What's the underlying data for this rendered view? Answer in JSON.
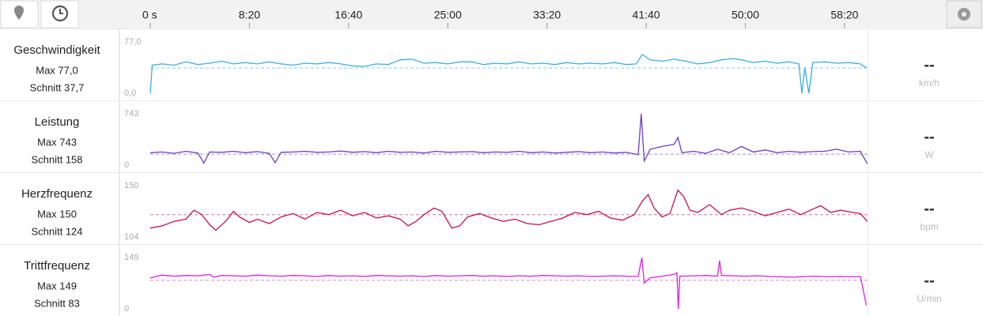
{
  "timeline": {
    "xlim": [
      0,
      3620
    ],
    "xticks": [
      {
        "value": 0,
        "label": "0 s"
      },
      {
        "value": 500,
        "label": "8:20"
      },
      {
        "value": 1000,
        "label": "16:40"
      },
      {
        "value": 1500,
        "label": "25:00"
      },
      {
        "value": 2000,
        "label": "33:20"
      },
      {
        "value": 2500,
        "label": "41:40"
      },
      {
        "value": 3000,
        "label": "50:00"
      },
      {
        "value": 3500,
        "label": "58:20"
      }
    ]
  },
  "chart_data": [
    {
      "type": "line",
      "title": "Geschwindigkeit",
      "max_label": "Max 77,0",
      "average": {
        "value": 37.7,
        "label": "Schnitt 37,7"
      },
      "current": "--",
      "unit": "km/h",
      "color": "#3aaee0",
      "ylim": [
        0,
        77
      ],
      "yticks": [
        {
          "value": 0,
          "label": "0,0"
        },
        {
          "value": 77,
          "label": "77,0"
        }
      ],
      "x": [
        0,
        10,
        60,
        120,
        180,
        240,
        300,
        360,
        420,
        480,
        540,
        600,
        660,
        720,
        780,
        840,
        900,
        960,
        1020,
        1080,
        1140,
        1200,
        1260,
        1320,
        1380,
        1440,
        1500,
        1560,
        1620,
        1680,
        1740,
        1800,
        1860,
        1920,
        1980,
        2040,
        2100,
        2160,
        2220,
        2280,
        2340,
        2400,
        2450,
        2480,
        2520,
        2580,
        2640,
        2700,
        2760,
        2820,
        2880,
        2940,
        2980,
        3040,
        3100,
        3160,
        3220,
        3270,
        3285,
        3300,
        3320,
        3340,
        3400,
        3460,
        3520,
        3580,
        3610
      ],
      "values": [
        0,
        42,
        44,
        42,
        47,
        43,
        45,
        48,
        44,
        46,
        44,
        47,
        44,
        42,
        45,
        44,
        46,
        44,
        41,
        40,
        44,
        43,
        50,
        51,
        45,
        46,
        44,
        47,
        47,
        43,
        45,
        44,
        47,
        44,
        45,
        43,
        46,
        44,
        45,
        44,
        46,
        43,
        44,
        58,
        50,
        48,
        51,
        48,
        44,
        46,
        50,
        52,
        50,
        46,
        48,
        45,
        47,
        44,
        0,
        38,
        0,
        46,
        47,
        45,
        46,
        44,
        38
      ]
    },
    {
      "type": "line",
      "title": "Leistung",
      "max_label": "Max 743",
      "average": {
        "value": 158,
        "label": "Schnitt 158"
      },
      "current": "--",
      "unit": "W",
      "color": "#6a3ec7",
      "ylim": [
        0,
        743
      ],
      "yticks": [
        0,
        743
      ],
      "x": [
        0,
        60,
        120,
        180,
        240,
        270,
        300,
        360,
        420,
        480,
        540,
        600,
        630,
        660,
        720,
        780,
        840,
        900,
        960,
        1020,
        1080,
        1140,
        1200,
        1260,
        1320,
        1380,
        1440,
        1500,
        1560,
        1620,
        1680,
        1740,
        1800,
        1860,
        1920,
        1980,
        2040,
        2100,
        2160,
        2220,
        2280,
        2340,
        2400,
        2460,
        2475,
        2490,
        2520,
        2580,
        2640,
        2660,
        2680,
        2740,
        2800,
        2860,
        2920,
        2980,
        3040,
        3100,
        3160,
        3220,
        3280,
        3340,
        3400,
        3460,
        3520,
        3580,
        3615
      ],
      "values": [
        180,
        190,
        170,
        200,
        175,
        30,
        190,
        185,
        200,
        180,
        195,
        170,
        35,
        185,
        190,
        200,
        185,
        190,
        205,
        185,
        195,
        180,
        200,
        185,
        190,
        175,
        200,
        185,
        190,
        195,
        180,
        190,
        185,
        200,
        180,
        190,
        175,
        185,
        195,
        180,
        190,
        175,
        185,
        150,
        743,
        60,
        230,
        270,
        300,
        400,
        180,
        200,
        170,
        230,
        180,
        270,
        190,
        220,
        180,
        200,
        185,
        195,
        200,
        230,
        190,
        200,
        20
      ]
    },
    {
      "type": "line",
      "title": "Herzfrequenz",
      "max_label": "Max 150",
      "average": {
        "value": 124,
        "label": "Schnitt 124"
      },
      "current": "--",
      "unit": "bpm",
      "color": "#c8104e",
      "ylim": [
        104,
        150
      ],
      "yticks": [
        104,
        150
      ],
      "x": [
        0,
        60,
        120,
        180,
        220,
        260,
        300,
        330,
        380,
        420,
        450,
        500,
        540,
        600,
        660,
        720,
        780,
        840,
        900,
        960,
        1020,
        1080,
        1140,
        1200,
        1260,
        1300,
        1340,
        1380,
        1430,
        1470,
        1520,
        1560,
        1600,
        1660,
        1720,
        1780,
        1840,
        1900,
        1960,
        2020,
        2080,
        2140,
        2200,
        2260,
        2320,
        2380,
        2440,
        2480,
        2510,
        2540,
        2580,
        2620,
        2660,
        2690,
        2720,
        2760,
        2820,
        2880,
        2920,
        2980,
        3040,
        3100,
        3160,
        3220,
        3280,
        3340,
        3380,
        3430,
        3480,
        3540,
        3580,
        3615
      ],
      "values": [
        112,
        114,
        118,
        120,
        128,
        124,
        115,
        110,
        118,
        127,
        122,
        117,
        120,
        116,
        122,
        125,
        120,
        126,
        124,
        128,
        123,
        126,
        121,
        123,
        120,
        114,
        118,
        124,
        130,
        127,
        112,
        114,
        122,
        125,
        121,
        118,
        120,
        116,
        115,
        118,
        121,
        126,
        124,
        127,
        121,
        119,
        124,
        136,
        142,
        130,
        122,
        125,
        146,
        140,
        128,
        126,
        133,
        124,
        128,
        130,
        127,
        123,
        126,
        129,
        124,
        129,
        132,
        126,
        128,
        126,
        125,
        118
      ]
    },
    {
      "type": "line",
      "title": "Trittfrequenz",
      "max_label": "Max 149",
      "average": {
        "value": 83,
        "label": "Schnitt 83"
      },
      "current": "--",
      "unit": "U/min",
      "color": "#e01ee0",
      "ylim": [
        0,
        149
      ],
      "yticks": [
        0,
        149
      ],
      "x": [
        0,
        60,
        120,
        180,
        240,
        300,
        320,
        360,
        420,
        480,
        540,
        600,
        660,
        720,
        780,
        840,
        900,
        960,
        1020,
        1080,
        1140,
        1200,
        1260,
        1320,
        1380,
        1440,
        1500,
        1560,
        1620,
        1680,
        1740,
        1800,
        1860,
        1920,
        1980,
        2040,
        2100,
        2160,
        2220,
        2280,
        2340,
        2400,
        2460,
        2478,
        2490,
        2520,
        2580,
        2640,
        2655,
        2662,
        2670,
        2740,
        2800,
        2860,
        2870,
        2880,
        2940,
        3000,
        3060,
        3120,
        3180,
        3240,
        3300,
        3360,
        3420,
        3480,
        3540,
        3580,
        3610
      ],
      "values": [
        90,
        98,
        95,
        97,
        96,
        100,
        92,
        97,
        96,
        95,
        98,
        96,
        95,
        97,
        96,
        94,
        97,
        95,
        96,
        94,
        97,
        96,
        95,
        96,
        94,
        97,
        95,
        96,
        97,
        95,
        96,
        94,
        96,
        95,
        97,
        96,
        95,
        96,
        94,
        95,
        96,
        95,
        94,
        149,
        75,
        90,
        95,
        100,
        105,
        0,
        95,
        96,
        97,
        95,
        140,
        97,
        96,
        95,
        96,
        94,
        93,
        92,
        94,
        95,
        93,
        94,
        93,
        94,
        10
      ]
    }
  ]
}
